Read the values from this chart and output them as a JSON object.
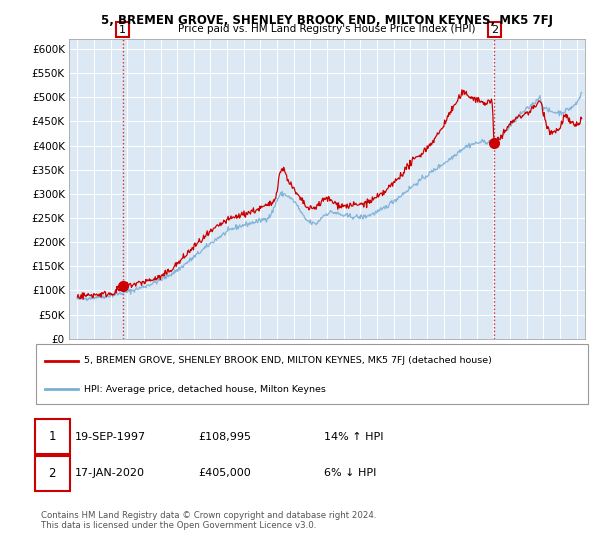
{
  "title": "5, BREMEN GROVE, SHENLEY BROOK END, MILTON KEYNES, MK5 7FJ",
  "subtitle": "Price paid vs. HM Land Registry's House Price Index (HPI)",
  "legend_line1": "5, BREMEN GROVE, SHENLEY BROOK END, MILTON KEYNES, MK5 7FJ (detached house)",
  "legend_line2": "HPI: Average price, detached house, Milton Keynes",
  "annotation1_date": "19-SEP-1997",
  "annotation1_price": "£108,995",
  "annotation1_hpi": "14% ↑ HPI",
  "annotation2_date": "17-JAN-2020",
  "annotation2_price": "£405,000",
  "annotation2_hpi": "6% ↓ HPI",
  "footer": "Contains HM Land Registry data © Crown copyright and database right 2024.\nThis data is licensed under the Open Government Licence v3.0.",
  "plot_bg_color": "#dce9f5",
  "red_color": "#cc0000",
  "blue_color": "#7bafd4",
  "marker1_x": 1997.72,
  "marker1_y": 108995,
  "marker2_x": 2020.05,
  "marker2_y": 405000,
  "vline1_x": 1997.72,
  "vline2_x": 2020.05,
  "ylim_min": 0,
  "ylim_max": 620000,
  "xlim_min": 1994.5,
  "xlim_max": 2025.5,
  "yticks": [
    0,
    50000,
    100000,
    150000,
    200000,
    250000,
    300000,
    350000,
    400000,
    450000,
    500000,
    550000,
    600000
  ],
  "ytick_labels": [
    "£0",
    "£50K",
    "£100K",
    "£150K",
    "£200K",
    "£250K",
    "£300K",
    "£350K",
    "£400K",
    "£450K",
    "£500K",
    "£550K",
    "£600K"
  ]
}
